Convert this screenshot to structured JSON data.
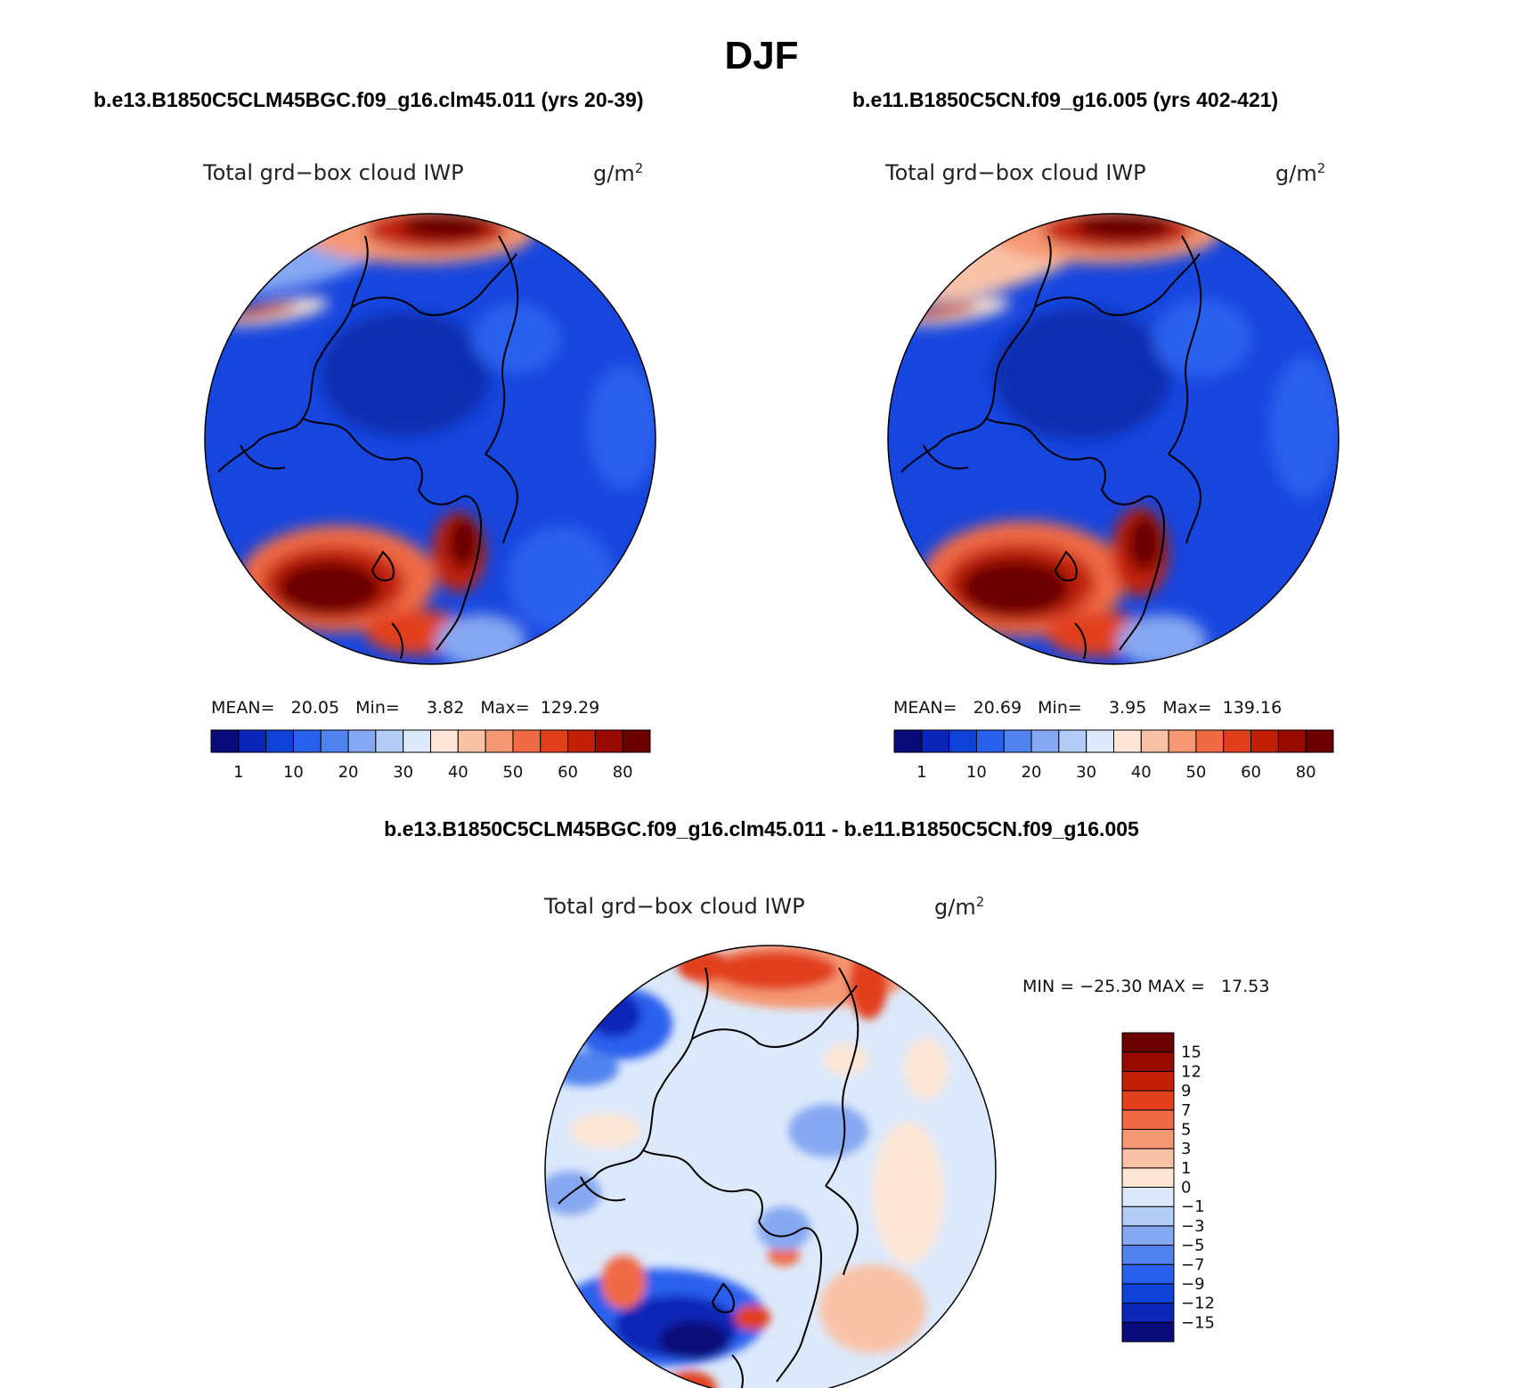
{
  "title": "DJF",
  "panels": [
    {
      "case": "b.e13.B1850C5CLM45BGC.f09_g16.clm45.011 (yrs 20-39)",
      "variable": "Total grd−box cloud IWP",
      "units_base": "g/m",
      "units_exp": "2",
      "stats": "MEAN=   20.05   Min=     3.82   Max=  129.29",
      "mean": 20.05,
      "min": 3.82,
      "max": 129.29
    },
    {
      "case": "b.e11.B1850C5CN.f09_g16.005 (yrs 402-421)",
      "variable": "Total grd−box cloud IWP",
      "units_base": "g/m",
      "units_exp": "2",
      "stats": "MEAN=   20.69   Min=     3.95   Max=  139.16",
      "mean": 20.69,
      "min": 3.95,
      "max": 139.16
    },
    {
      "case": "b.e13.B1850C5CLM45BGC.f09_g16.clm45.011 - b.e11.B1850C5CN.f09_g16.005",
      "variable": "Total grd−box cloud IWP",
      "units_base": "g/m",
      "units_exp": "2",
      "stats": "MIN = −25.30 MAX =   17.53",
      "min": -25.3,
      "max": 17.53
    }
  ],
  "colorbar_abs": {
    "colors": [
      "#0a0a7a",
      "#0926b8",
      "#0f43d8",
      "#2a60ee",
      "#5183ee",
      "#86a8f2",
      "#b4cdf7",
      "#dce9fb",
      "#fde6d6",
      "#f9c2a7",
      "#f59772",
      "#f06a44",
      "#e23f1c",
      "#c22108",
      "#980b01",
      "#6b0000"
    ],
    "labels": [
      "1",
      "10",
      "20",
      "30",
      "40",
      "50",
      "60",
      "80"
    ]
  },
  "colorbar_diff": {
    "colors": [
      "#0a0a7a",
      "#0926b8",
      "#0f43d8",
      "#2a60ee",
      "#5183ee",
      "#86a8f2",
      "#b4cdf7",
      "#dce9fb",
      "#fde6d6",
      "#f9c2a7",
      "#f59772",
      "#f06a44",
      "#e23f1c",
      "#c22108",
      "#980b01",
      "#6b0000"
    ],
    "labels": [
      "−15",
      "−12",
      "−9",
      "−7",
      "−5",
      "−3",
      "−1",
      "0",
      "1",
      "3",
      "5",
      "7",
      "9",
      "12",
      "15"
    ]
  },
  "chart_data": [
    {
      "type": "heatmap",
      "projection": "north polar stereographic",
      "title": "b.e13.B1850C5CLM45BGC.f09_g16.clm45.011 (yrs 20-39)",
      "variable": "Total grd−box cloud IWP",
      "units": "g/m2",
      "levels": [
        1,
        5,
        10,
        15,
        20,
        25,
        30,
        35,
        40,
        45,
        50,
        55,
        60,
        70,
        80
      ],
      "mean": 20.05,
      "min": 3.82,
      "max": 129.29
    },
    {
      "type": "heatmap",
      "projection": "north polar stereographic",
      "title": "b.e11.B1850C5CN.f09_g16.005 (yrs 402-421)",
      "variable": "Total grd−box cloud IWP",
      "units": "g/m2",
      "levels": [
        1,
        5,
        10,
        15,
        20,
        25,
        30,
        35,
        40,
        45,
        50,
        55,
        60,
        70,
        80
      ],
      "mean": 20.69,
      "min": 3.95,
      "max": 139.16
    },
    {
      "type": "heatmap",
      "projection": "north polar stereographic",
      "title": "b.e13.B1850C5CLM45BGC.f09_g16.clm45.011 - b.e11.B1850C5CN.f09_g16.005",
      "variable": "Total grd−box cloud IWP",
      "units": "g/m2",
      "levels": [
        -15,
        -12,
        -9,
        -7,
        -5,
        -3,
        -1,
        0,
        1,
        3,
        5,
        7,
        9,
        12,
        15
      ],
      "min": -25.3,
      "max": 17.53
    }
  ]
}
